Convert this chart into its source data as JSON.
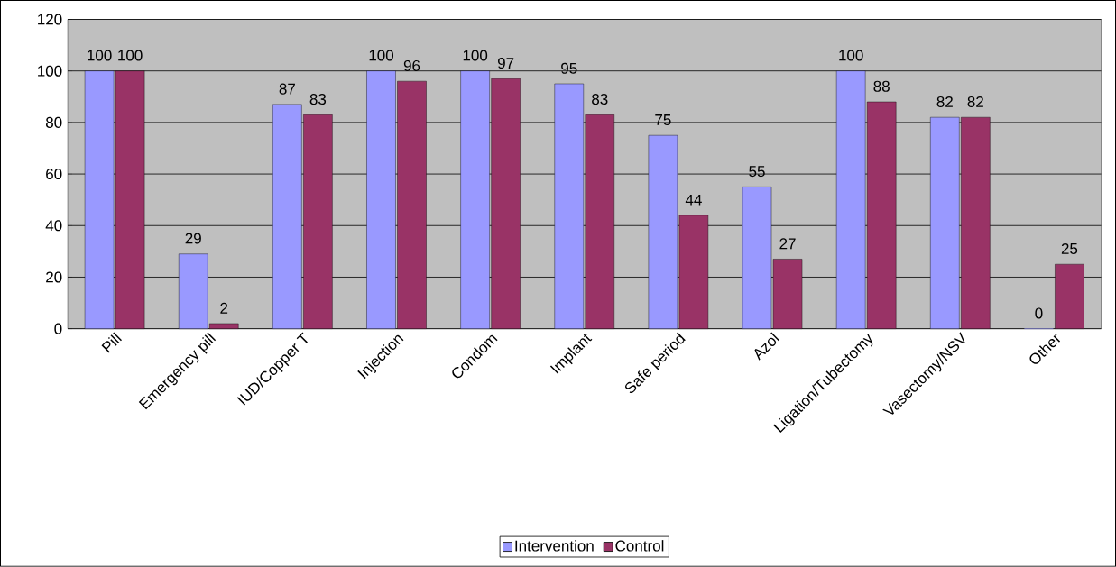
{
  "chart_data": {
    "type": "bar",
    "categories": [
      "Pill",
      "Emergency pill",
      "IUD/Copper T",
      "Injection",
      "Condom",
      "Implant",
      "Safe period",
      "Azol",
      "Ligation/Tubectomy",
      "Vasectomy/NSV",
      "Other"
    ],
    "series": [
      {
        "name": "Intervention",
        "color": "#9999ff",
        "values": [
          100,
          29,
          87,
          100,
          100,
          95,
          75,
          55,
          100,
          82,
          0
        ]
      },
      {
        "name": "Control",
        "color": "#993366",
        "values": [
          100,
          2,
          83,
          96,
          97,
          83,
          44,
          27,
          88,
          82,
          25
        ]
      }
    ],
    "ylim": [
      0,
      120
    ],
    "yticks": [
      0,
      20,
      40,
      60,
      80,
      100,
      120
    ],
    "grid": "y",
    "legend": "bottom",
    "data_labels": true
  }
}
